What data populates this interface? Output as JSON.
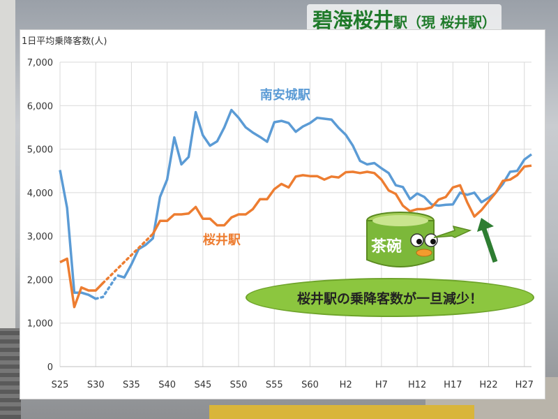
{
  "title": {
    "main": "碧海桜井",
    "suffix": "駅（現 桜井駅）"
  },
  "callout": "桜井駅の乗降客数が一旦減少！",
  "mascot_text": "茶碗",
  "chart_data": {
    "type": "line",
    "ylabel": "1日平均乗降客数(人)",
    "ylim": [
      0,
      7000
    ],
    "yticks": [
      0,
      1000,
      2000,
      3000,
      4000,
      5000,
      6000,
      7000
    ],
    "ytick_labels": [
      "0",
      "1,000",
      "2,000",
      "3,000",
      "4,000",
      "5,000",
      "6,000",
      "7,000"
    ],
    "x_start_year": 1950,
    "x_end_year": 2016,
    "xticks": [
      1950,
      1955,
      1960,
      1965,
      1970,
      1975,
      1980,
      1985,
      1990,
      1995,
      2000,
      2005,
      2010,
      2015
    ],
    "xtick_labels": [
      "S25",
      "S30",
      "S35",
      "S40",
      "S45",
      "S50",
      "S55",
      "S60",
      "H2",
      "H7",
      "H12",
      "H17",
      "H22",
      "H27"
    ],
    "grid": true,
    "series": [
      {
        "name": "南安城駅",
        "color": "#5b9bd5",
        "data": [
          [
            1950,
            4520
          ],
          [
            1951,
            3650
          ],
          [
            1952,
            1700
          ],
          [
            1953,
            1700
          ],
          [
            1954,
            1650
          ],
          [
            1955,
            1560
          ],
          [
            1956,
            1600
          ],
          [
            1958,
            2100
          ],
          [
            1959,
            2050
          ],
          [
            1960,
            2350
          ],
          [
            1961,
            2700
          ],
          [
            1962,
            2800
          ],
          [
            1963,
            2950
          ],
          [
            1964,
            3900
          ],
          [
            1965,
            4300
          ],
          [
            1966,
            5270
          ],
          [
            1967,
            4650
          ],
          [
            1968,
            4820
          ],
          [
            1969,
            5850
          ],
          [
            1970,
            5320
          ],
          [
            1971,
            5080
          ],
          [
            1972,
            5180
          ],
          [
            1973,
            5500
          ],
          [
            1974,
            5900
          ],
          [
            1975,
            5720
          ],
          [
            1976,
            5500
          ],
          [
            1977,
            5380
          ],
          [
            1978,
            5280
          ],
          [
            1979,
            5170
          ],
          [
            1980,
            5620
          ],
          [
            1981,
            5650
          ],
          [
            1982,
            5600
          ],
          [
            1983,
            5400
          ],
          [
            1984,
            5520
          ],
          [
            1985,
            5600
          ],
          [
            1986,
            5720
          ],
          [
            1987,
            5700
          ],
          [
            1988,
            5680
          ],
          [
            1989,
            5490
          ],
          [
            1990,
            5330
          ],
          [
            1991,
            5080
          ],
          [
            1992,
            4730
          ],
          [
            1993,
            4650
          ],
          [
            1994,
            4680
          ],
          [
            1995,
            4560
          ],
          [
            1996,
            4450
          ],
          [
            1997,
            4170
          ],
          [
            1998,
            4130
          ],
          [
            1999,
            3850
          ],
          [
            2000,
            3980
          ],
          [
            2001,
            3900
          ],
          [
            2002,
            3730
          ],
          [
            2003,
            3700
          ],
          [
            2004,
            3720
          ],
          [
            2005,
            3730
          ],
          [
            2006,
            4000
          ],
          [
            2007,
            3950
          ],
          [
            2008,
            4000
          ],
          [
            2009,
            3780
          ],
          [
            2010,
            3880
          ],
          [
            2011,
            4000
          ],
          [
            2012,
            4200
          ],
          [
            2013,
            4480
          ],
          [
            2014,
            4500
          ],
          [
            2015,
            4760
          ],
          [
            2016,
            4880
          ]
        ],
        "dotted_segment": [
          [
            1955,
            1560
          ],
          [
            1956,
            1600
          ],
          [
            1958,
            2100
          ]
        ]
      },
      {
        "name": "桜井駅",
        "color": "#ed7d31",
        "data": [
          [
            1950,
            2400
          ],
          [
            1951,
            2480
          ],
          [
            1952,
            1370
          ],
          [
            1953,
            1820
          ],
          [
            1954,
            1750
          ],
          [
            1955,
            1750
          ],
          [
            1956,
            1920
          ],
          [
            1963,
            3050
          ],
          [
            1964,
            3350
          ],
          [
            1965,
            3350
          ],
          [
            1966,
            3500
          ],
          [
            1967,
            3500
          ],
          [
            1968,
            3520
          ],
          [
            1969,
            3670
          ],
          [
            1970,
            3400
          ],
          [
            1971,
            3400
          ],
          [
            1972,
            3250
          ],
          [
            1973,
            3250
          ],
          [
            1974,
            3430
          ],
          [
            1975,
            3500
          ],
          [
            1976,
            3500
          ],
          [
            1977,
            3620
          ],
          [
            1978,
            3850
          ],
          [
            1979,
            3850
          ],
          [
            1980,
            4080
          ],
          [
            1981,
            4200
          ],
          [
            1982,
            4120
          ],
          [
            1983,
            4370
          ],
          [
            1984,
            4400
          ],
          [
            1985,
            4380
          ],
          [
            1986,
            4380
          ],
          [
            1987,
            4300
          ],
          [
            1988,
            4370
          ],
          [
            1989,
            4350
          ],
          [
            1990,
            4470
          ],
          [
            1991,
            4480
          ],
          [
            1992,
            4450
          ],
          [
            1993,
            4480
          ],
          [
            1994,
            4450
          ],
          [
            1995,
            4300
          ],
          [
            1996,
            4050
          ],
          [
            1997,
            3970
          ],
          [
            1998,
            3700
          ],
          [
            1999,
            3570
          ],
          [
            2000,
            3620
          ],
          [
            2001,
            3620
          ],
          [
            2002,
            3660
          ],
          [
            2003,
            3840
          ],
          [
            2004,
            3900
          ],
          [
            2005,
            4120
          ],
          [
            2006,
            4170
          ],
          [
            2007,
            3780
          ],
          [
            2008,
            3450
          ],
          [
            2009,
            3600
          ],
          [
            2010,
            3800
          ],
          [
            2011,
            4000
          ],
          [
            2012,
            4270
          ],
          [
            2013,
            4300
          ],
          [
            2014,
            4400
          ],
          [
            2015,
            4600
          ],
          [
            2016,
            4620
          ]
        ],
        "dotted_segment": [
          [
            1956,
            1920
          ],
          [
            1963,
            3050
          ]
        ]
      }
    ],
    "annotations": [
      {
        "text": "南安城駅",
        "x": 1978,
        "y": 6150,
        "color": "#5b9bd5"
      },
      {
        "text": "桜井駅",
        "x": 1970,
        "y": 2820,
        "color": "#ed7d31"
      }
    ]
  }
}
